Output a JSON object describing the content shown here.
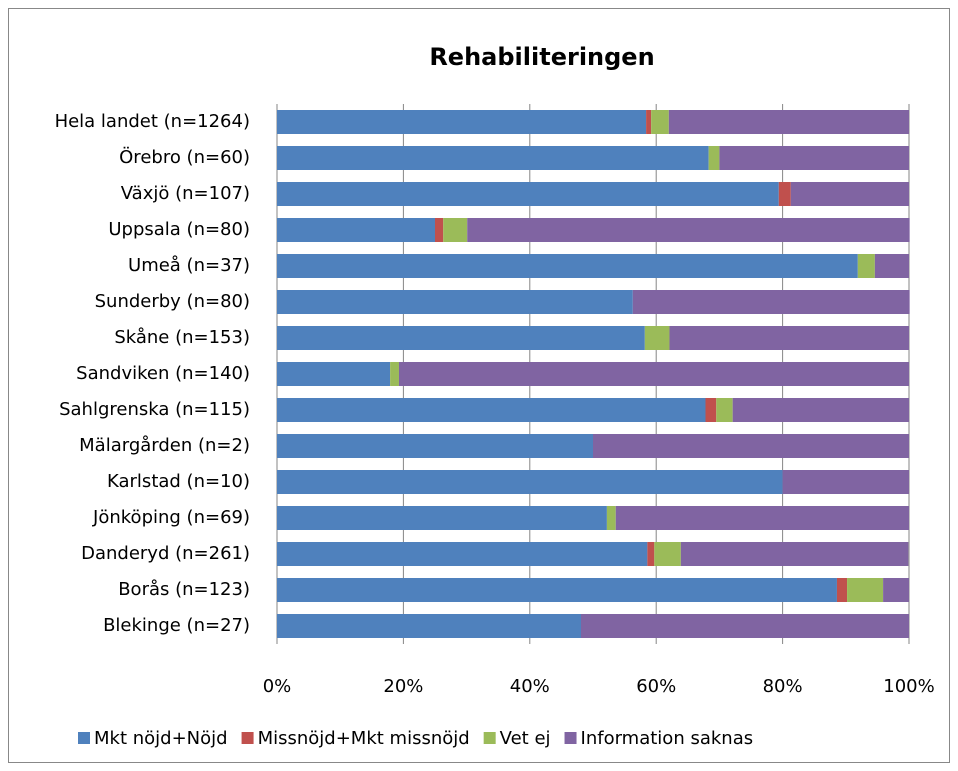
{
  "chart_data": {
    "type": "stacked_bar_horizontal",
    "title": "Rehabiliteringen",
    "categories": [
      "Hela landet (n=1264)",
      "Örebro (n=60)",
      "Växjö (n=107)",
      "Uppsala (n=80)",
      "Umeå (n=37)",
      "Sunderby (n=80)",
      "Skåne (n=153)",
      "Sandviken (n=140)",
      "Sahlgrenska (n=115)",
      "Mälargården (n=2)",
      "Karlstad (n=10)",
      "Jönköping (n=69)",
      "Danderyd (n=261)",
      "Borås (n=123)",
      "Blekinge (n=27)"
    ],
    "series": [
      {
        "name": "Mkt nöjd+Nöjd",
        "color": "#4f81bd",
        "values": [
          58.4,
          68.3,
          79.4,
          25.0,
          91.9,
          56.3,
          58.2,
          17.9,
          67.8,
          50,
          80,
          52.2,
          58.6,
          88.6,
          48.1
        ]
      },
      {
        "name": "Missnöjd+Mkt missnöjd",
        "color": "#c0504d",
        "values": [
          0.8,
          0,
          1.9,
          1.3,
          0,
          0,
          0,
          0,
          1.7,
          0,
          0,
          0,
          1.1,
          1.6,
          0
        ]
      },
      {
        "name": "Vet ej",
        "color": "#9bbb59",
        "values": [
          2.8,
          1.7,
          0,
          3.8,
          2.7,
          0,
          3.9,
          1.4,
          2.6,
          0,
          0,
          1.4,
          4.2,
          5.7,
          0
        ]
      },
      {
        "name": "Information saknas",
        "color": "#8064a2",
        "values": [
          38.0,
          30.0,
          18.7,
          70.0,
          5.4,
          43.8,
          37.9,
          80.7,
          27.9,
          50,
          20,
          46.4,
          36.0,
          4.1,
          51.9
        ]
      }
    ],
    "xlim": [
      0,
      100
    ],
    "xticks": [
      {
        "value": 0,
        "label": "0%"
      },
      {
        "value": 20,
        "label": "20%"
      },
      {
        "value": 40,
        "label": "40%"
      },
      {
        "value": 60,
        "label": "60%"
      },
      {
        "value": 80,
        "label": "80%"
      },
      {
        "value": 100,
        "label": "100%"
      }
    ],
    "grid": true,
    "legend": "bottom"
  }
}
